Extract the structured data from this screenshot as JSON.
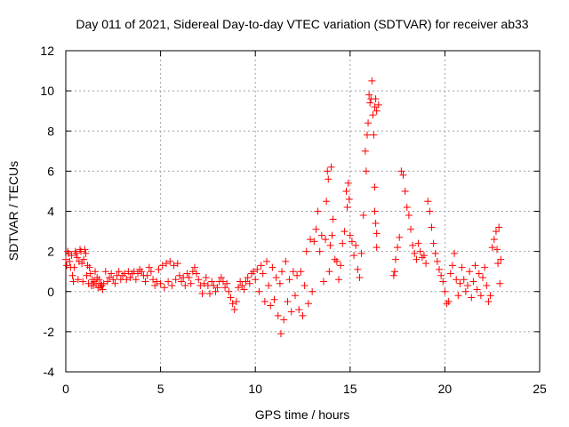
{
  "chart_data": {
    "type": "scatter",
    "title": "Day 011 of 2021, Sidereal Day-to-day VTEC variation (SDTVAR) for receiver ab33",
    "xlabel": "GPS time / hours",
    "ylabel": "SDTVAR / TECUs",
    "xlim": [
      0,
      25
    ],
    "ylim": [
      -4,
      12
    ],
    "xticks": [
      0,
      5,
      10,
      15,
      20,
      25
    ],
    "yticks": [
      -4,
      -2,
      0,
      2,
      4,
      6,
      8,
      10,
      12
    ],
    "grid": true,
    "marker": "+",
    "color": "#ff0000",
    "series": [
      {
        "name": "SDTVAR",
        "points": [
          [
            0.0,
            1.6
          ],
          [
            0.05,
            1.3
          ],
          [
            0.1,
            2.0
          ],
          [
            0.15,
            1.9
          ],
          [
            0.2,
            1.5
          ],
          [
            0.25,
            1.2
          ],
          [
            0.3,
            1.8
          ],
          [
            0.35,
            0.8
          ],
          [
            0.4,
            0.5
          ],
          [
            0.45,
            1.2
          ],
          [
            0.5,
            2.0
          ],
          [
            0.55,
            1.9
          ],
          [
            0.6,
            1.7
          ],
          [
            0.65,
            0.6
          ],
          [
            0.7,
            1.5
          ],
          [
            0.75,
            2.1
          ],
          [
            0.8,
            2.0
          ],
          [
            0.85,
            1.4
          ],
          [
            0.9,
            0.5
          ],
          [
            0.95,
            1.6
          ],
          [
            1.0,
            2.1
          ],
          [
            1.05,
            1.9
          ],
          [
            1.1,
            0.8
          ],
          [
            1.15,
            1.3
          ],
          [
            1.2,
            0.4
          ],
          [
            1.25,
            1.2
          ],
          [
            1.3,
            0.9
          ],
          [
            1.35,
            0.3
          ],
          [
            1.4,
            0.6
          ],
          [
            1.45,
            0.3
          ],
          [
            1.5,
            0.5
          ],
          [
            1.55,
            1.0
          ],
          [
            1.6,
            0.4
          ],
          [
            1.65,
            0.7
          ],
          [
            1.7,
            0.2
          ],
          [
            1.75,
            0.6
          ],
          [
            1.8,
            0.2
          ],
          [
            1.85,
            0.4
          ],
          [
            1.9,
            0.3
          ],
          [
            1.95,
            0.1
          ],
          [
            2.0,
            0.4
          ],
          [
            2.1,
            1.0
          ],
          [
            2.2,
            0.5
          ],
          [
            2.3,
            0.7
          ],
          [
            2.4,
            0.9
          ],
          [
            2.5,
            0.6
          ],
          [
            2.6,
            0.4
          ],
          [
            2.7,
            0.8
          ],
          [
            2.8,
            1.0
          ],
          [
            2.9,
            0.6
          ],
          [
            3.0,
            0.8
          ],
          [
            3.1,
            0.9
          ],
          [
            3.2,
            0.6
          ],
          [
            3.3,
            1.0
          ],
          [
            3.4,
            0.7
          ],
          [
            3.5,
            0.9
          ],
          [
            3.6,
            1.0
          ],
          [
            3.7,
            0.6
          ],
          [
            3.8,
            0.9
          ],
          [
            3.9,
            1.1
          ],
          [
            4.0,
            1.0
          ],
          [
            4.1,
            0.8
          ],
          [
            4.2,
            0.5
          ],
          [
            4.3,
            0.8
          ],
          [
            4.4,
            1.2
          ],
          [
            4.5,
            1.0
          ],
          [
            4.6,
            0.6
          ],
          [
            4.7,
            0.3
          ],
          [
            4.8,
            0.5
          ],
          [
            4.9,
            1.1
          ],
          [
            5.0,
            0.4
          ],
          [
            5.1,
            1.3
          ],
          [
            5.2,
            0.2
          ],
          [
            5.3,
            1.4
          ],
          [
            5.4,
            0.5
          ],
          [
            5.5,
            1.5
          ],
          [
            5.6,
            0.3
          ],
          [
            5.7,
            1.3
          ],
          [
            5.8,
            0.6
          ],
          [
            5.9,
            1.4
          ],
          [
            6.0,
            0.8
          ],
          [
            6.1,
            0.5
          ],
          [
            6.2,
            0.7
          ],
          [
            6.3,
            0.3
          ],
          [
            6.4,
            0.9
          ],
          [
            6.5,
            0.7
          ],
          [
            6.6,
            0.4
          ],
          [
            6.7,
            1.0
          ],
          [
            6.8,
            1.2
          ],
          [
            6.9,
            0.9
          ],
          [
            7.0,
            0.6
          ],
          [
            7.1,
            0.3
          ],
          [
            7.2,
            -0.1
          ],
          [
            7.3,
            0.4
          ],
          [
            7.4,
            0.7
          ],
          [
            7.5,
            0.3
          ],
          [
            7.6,
            -0.1
          ],
          [
            7.7,
            0.5
          ],
          [
            7.8,
            0.3
          ],
          [
            7.9,
            0.0
          ],
          [
            8.0,
            0.2
          ],
          [
            8.1,
            0.5
          ],
          [
            8.2,
            0.7
          ],
          [
            8.3,
            0.5
          ],
          [
            8.4,
            0.2
          ],
          [
            8.5,
            0.4
          ],
          [
            8.6,
            0.0
          ],
          [
            8.7,
            -0.3
          ],
          [
            8.8,
            -0.6
          ],
          [
            8.9,
            -0.9
          ],
          [
            9.0,
            -0.5
          ],
          [
            9.1,
            0.2
          ],
          [
            9.2,
            0.5
          ],
          [
            9.3,
            0.3
          ],
          [
            9.4,
            0.1
          ],
          [
            9.5,
            0.5
          ],
          [
            9.6,
            0.7
          ],
          [
            9.7,
            0.4
          ],
          [
            9.8,
            0.9
          ],
          [
            9.9,
            1.0
          ],
          [
            10.0,
            0.6
          ],
          [
            10.1,
            1.1
          ],
          [
            10.2,
            0.0
          ],
          [
            10.3,
            1.3
          ],
          [
            10.4,
            0.9
          ],
          [
            10.5,
            -0.5
          ],
          [
            10.6,
            1.5
          ],
          [
            10.7,
            0.3
          ],
          [
            10.8,
            -0.7
          ],
          [
            10.9,
            1.2
          ],
          [
            11.0,
            -0.4
          ],
          [
            11.1,
            0.7
          ],
          [
            11.2,
            -1.2
          ],
          [
            11.3,
            0.4
          ],
          [
            11.35,
            -2.1
          ],
          [
            11.4,
            1.0
          ],
          [
            11.5,
            -1.4
          ],
          [
            11.6,
            1.5
          ],
          [
            11.7,
            -0.5
          ],
          [
            11.8,
            0.6
          ],
          [
            11.9,
            -1.0
          ],
          [
            12.0,
            1.0
          ],
          [
            12.1,
            -0.2
          ],
          [
            12.2,
            0.8
          ],
          [
            12.3,
            -0.9
          ],
          [
            12.4,
            1.0
          ],
          [
            12.5,
            -1.2
          ],
          [
            12.6,
            0.3
          ],
          [
            12.7,
            2.0
          ],
          [
            12.8,
            -0.6
          ],
          [
            12.9,
            2.6
          ],
          [
            13.0,
            0.0
          ],
          [
            13.1,
            2.5
          ],
          [
            13.2,
            3.1
          ],
          [
            13.3,
            4.0
          ],
          [
            13.4,
            2.0
          ],
          [
            13.5,
            2.8
          ],
          [
            13.6,
            0.5
          ],
          [
            13.7,
            2.6
          ],
          [
            13.75,
            4.5
          ],
          [
            13.8,
            6.0
          ],
          [
            13.85,
            5.6
          ],
          [
            13.9,
            1.0
          ],
          [
            13.95,
            2.3
          ],
          [
            14.0,
            6.2
          ],
          [
            14.05,
            2.8
          ],
          [
            14.1,
            3.6
          ],
          [
            14.2,
            1.6
          ],
          [
            14.3,
            1.5
          ],
          [
            14.4,
            0.6
          ],
          [
            14.5,
            1.3
          ],
          [
            14.6,
            2.4
          ],
          [
            14.7,
            3.0
          ],
          [
            14.8,
            5.0
          ],
          [
            14.85,
            4.2
          ],
          [
            14.9,
            5.4
          ],
          [
            14.95,
            4.6
          ],
          [
            15.0,
            2.8
          ],
          [
            15.1,
            2.5
          ],
          [
            15.2,
            1.8
          ],
          [
            15.3,
            2.3
          ],
          [
            15.4,
            1.1
          ],
          [
            15.5,
            0.7
          ],
          [
            15.6,
            1.9
          ],
          [
            15.7,
            3.8
          ],
          [
            15.8,
            7.0
          ],
          [
            15.85,
            6.0
          ],
          [
            15.9,
            7.8
          ],
          [
            15.95,
            8.4
          ],
          [
            16.0,
            9.8
          ],
          [
            16.05,
            9.4
          ],
          [
            16.1,
            9.6
          ],
          [
            16.15,
            10.5
          ],
          [
            16.2,
            8.8
          ],
          [
            16.25,
            7.8
          ],
          [
            16.3,
            9.2
          ],
          [
            16.35,
            9.6
          ],
          [
            16.4,
            9.0
          ],
          [
            16.5,
            9.3
          ],
          [
            16.3,
            4.0
          ],
          [
            16.3,
            5.2
          ],
          [
            16.35,
            3.4
          ],
          [
            16.4,
            2.9
          ],
          [
            16.4,
            2.2
          ],
          [
            17.3,
            0.8
          ],
          [
            17.35,
            1.0
          ],
          [
            17.4,
            1.6
          ],
          [
            17.5,
            2.2
          ],
          [
            17.6,
            2.7
          ],
          [
            17.7,
            6.0
          ],
          [
            17.8,
            5.8
          ],
          [
            17.9,
            5.0
          ],
          [
            18.0,
            4.2
          ],
          [
            18.1,
            3.8
          ],
          [
            18.2,
            3.1
          ],
          [
            18.3,
            2.3
          ],
          [
            18.4,
            1.9
          ],
          [
            18.5,
            1.6
          ],
          [
            18.6,
            2.4
          ],
          [
            18.7,
            2.0
          ],
          [
            18.8,
            1.7
          ],
          [
            18.9,
            1.8
          ],
          [
            19.0,
            1.4
          ],
          [
            19.1,
            4.5
          ],
          [
            19.2,
            4.0
          ],
          [
            19.3,
            3.2
          ],
          [
            19.4,
            2.4
          ],
          [
            19.5,
            1.9
          ],
          [
            19.6,
            1.5
          ],
          [
            19.7,
            1.1
          ],
          [
            19.8,
            0.8
          ],
          [
            19.9,
            0.5
          ],
          [
            20.0,
            0.0
          ],
          [
            20.1,
            -0.6
          ],
          [
            20.2,
            -0.5
          ],
          [
            20.3,
            0.9
          ],
          [
            20.4,
            1.3
          ],
          [
            20.5,
            1.9
          ],
          [
            20.6,
            0.6
          ],
          [
            20.7,
            -0.2
          ],
          [
            20.8,
            0.4
          ],
          [
            20.9,
            1.2
          ],
          [
            21.0,
            0.6
          ],
          [
            21.1,
            0.0
          ],
          [
            21.2,
            0.3
          ],
          [
            21.3,
            1.0
          ],
          [
            21.4,
            -0.3
          ],
          [
            21.5,
            0.5
          ],
          [
            21.6,
            1.3
          ],
          [
            21.7,
            0.1
          ],
          [
            21.8,
            0.9
          ],
          [
            21.9,
            -0.2
          ],
          [
            22.0,
            0.7
          ],
          [
            22.1,
            1.2
          ],
          [
            22.2,
            0.3
          ],
          [
            22.3,
            -0.5
          ],
          [
            22.4,
            -0.2
          ],
          [
            22.5,
            2.2
          ],
          [
            22.6,
            2.6
          ],
          [
            22.7,
            3.0
          ],
          [
            22.75,
            2.1
          ],
          [
            22.8,
            1.4
          ],
          [
            22.85,
            3.2
          ],
          [
            22.9,
            0.4
          ],
          [
            22.95,
            1.6
          ]
        ]
      }
    ]
  }
}
